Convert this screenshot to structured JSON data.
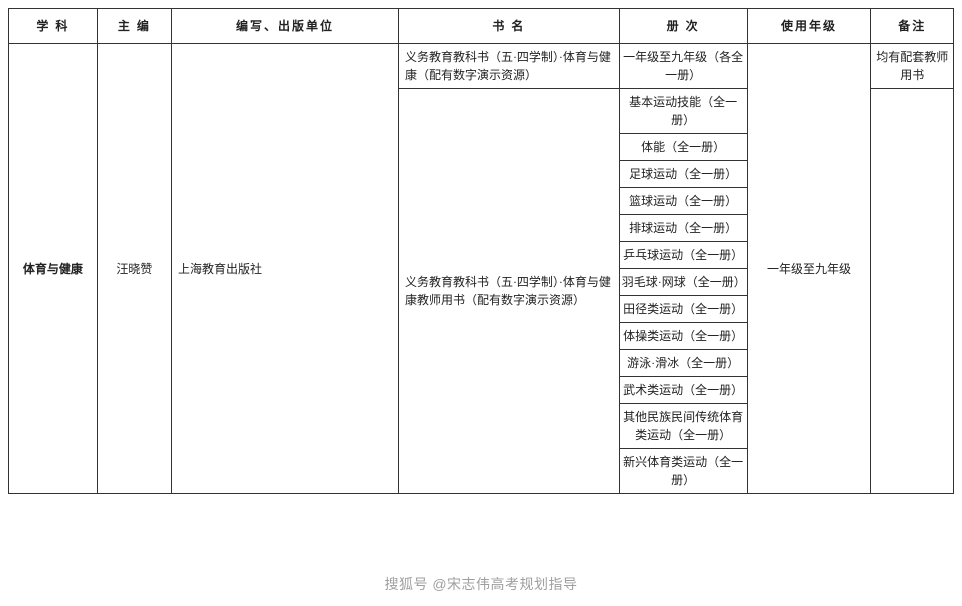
{
  "headers": {
    "subject": "学 科",
    "editor": "主 编",
    "publisher": "编写、出版单位",
    "book": "书 名",
    "volume": "册 次",
    "grade": "使用年级",
    "note": "备注"
  },
  "row": {
    "subject": "体育与健康",
    "editor": "汪晓赞",
    "publisher": "上海教育出版社",
    "grade": "一年级至九年级",
    "book1": "义务教育教科书（五·四学制）·体育与健康（配有数字演示资源）",
    "vol1": "一年级至九年级（各全一册）",
    "note1": "均有配套教师用书",
    "book2": "义务教育教科书（五·四学制）·体育与健康教师用书（配有数字演示资源）",
    "vols": [
      "基本运动技能（全一册）",
      "体能（全一册）",
      "足球运动（全一册）",
      "篮球运动（全一册）",
      "排球运动（全一册）",
      "乒乓球运动（全一册）",
      "羽毛球·网球（全一册）",
      "田径类运动（全一册）",
      "体操类运动（全一册）",
      "游泳·滑冰（全一册）",
      "武术类运动（全一册）",
      "其他民族民间传统体育类运动（全一册）",
      "新兴体育类运动（全一册）"
    ]
  },
  "watermark": "搜狐号 @宋志伟高考规划指导",
  "style": {
    "border_color": "#333333",
    "text_color": "#222222",
    "bg_color": "#ffffff",
    "font_size_cell": 12,
    "font_size_header": 12
  }
}
